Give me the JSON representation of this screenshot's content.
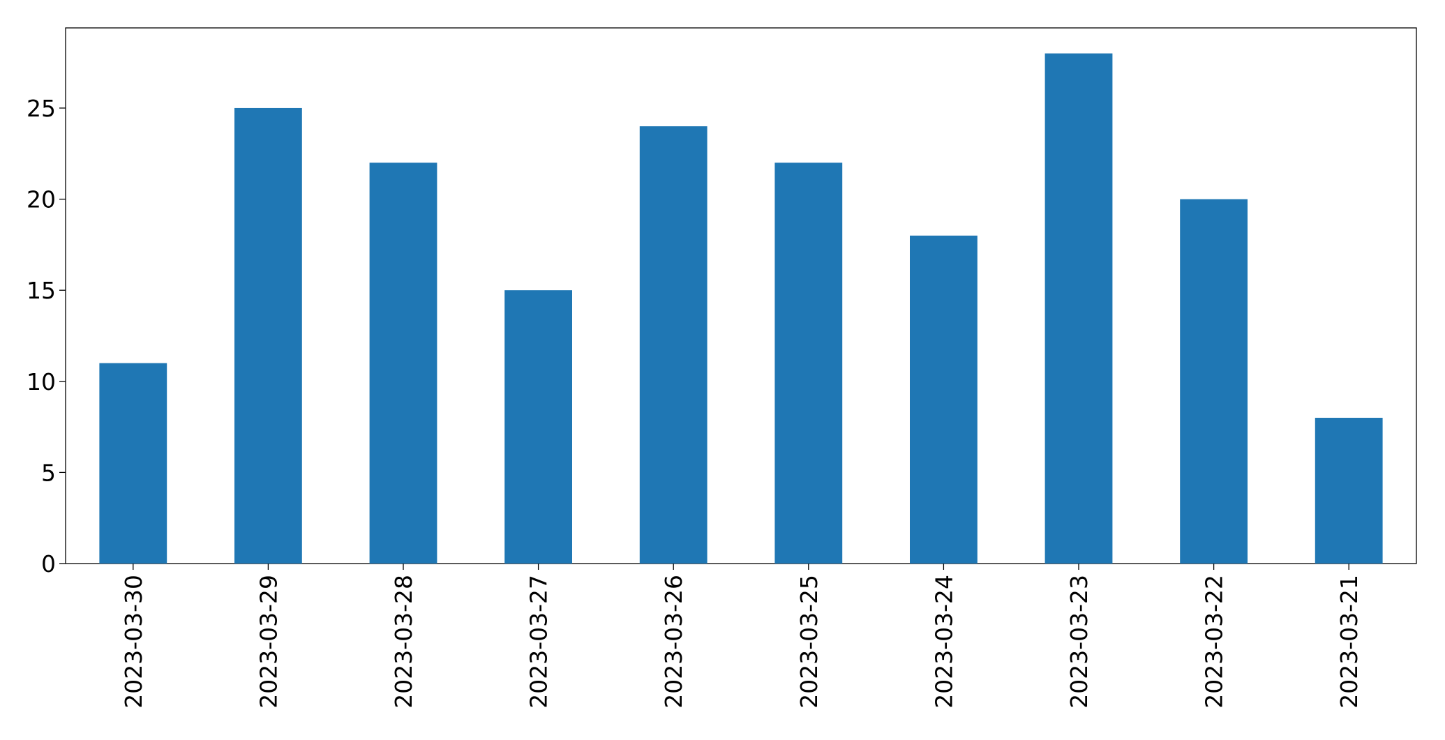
{
  "chart_data": {
    "type": "bar",
    "categories": [
      "2023-03-30",
      "2023-03-29",
      "2023-03-28",
      "2023-03-27",
      "2023-03-26",
      "2023-03-25",
      "2023-03-24",
      "2023-03-23",
      "2023-03-22",
      "2023-03-21"
    ],
    "values": [
      11,
      25,
      22,
      15,
      24,
      22,
      18,
      28,
      20,
      8
    ],
    "color": "#1f77b4",
    "ylim": [
      0,
      29.4
    ],
    "yticks": [
      0,
      5,
      10,
      15,
      20,
      25
    ],
    "grid": false
  }
}
